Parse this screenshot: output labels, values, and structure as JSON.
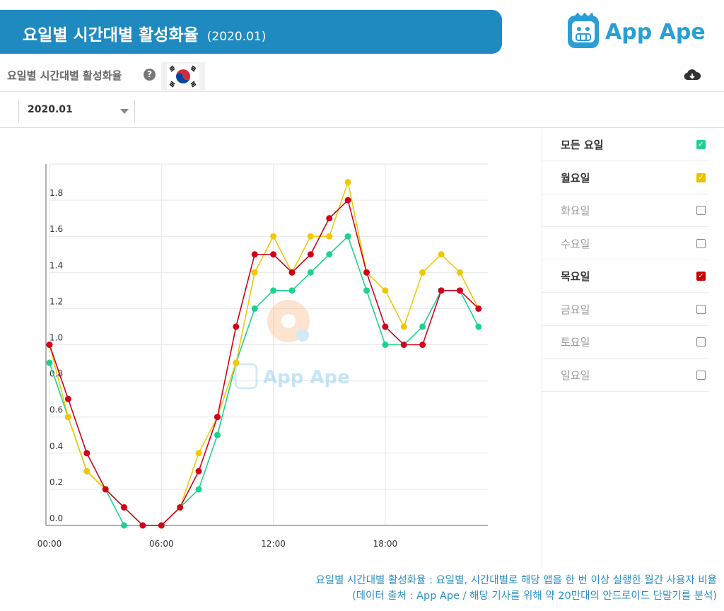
{
  "header": {
    "title": "요일별 시간대별 활성화율",
    "period_suffix": "(2020.01)",
    "logo_text": "App Ape",
    "colors": {
      "banner": "#1f8ac0",
      "logo": "#2a9fd6"
    }
  },
  "subheader": {
    "title": "요일별 시간대별 활성화율",
    "help_icon": "question-circle-icon",
    "flag_icon": "south-korea-flag-icon",
    "download_icon": "cloud-download-icon"
  },
  "toolbar": {
    "period_value": "2020.01"
  },
  "legend": {
    "items": [
      {
        "label": "모든 요일",
        "checked": true,
        "color": "#1fd18f"
      },
      {
        "label": "월요일",
        "checked": true,
        "color": "#e8c100"
      },
      {
        "label": "화요일",
        "checked": false,
        "color": "#888888"
      },
      {
        "label": "수요일",
        "checked": false,
        "color": "#888888"
      },
      {
        "label": "목요일",
        "checked": true,
        "color": "#cc0000"
      },
      {
        "label": "금요일",
        "checked": false,
        "color": "#888888"
      },
      {
        "label": "토요일",
        "checked": false,
        "color": "#888888"
      },
      {
        "label": "일요일",
        "checked": false,
        "color": "#888888"
      }
    ]
  },
  "chart_data": {
    "type": "line",
    "title": "",
    "xlabel": "",
    "ylabel": "",
    "x": [
      0,
      1,
      2,
      3,
      4,
      5,
      6,
      7,
      8,
      9,
      10,
      11,
      12,
      13,
      14,
      15,
      16,
      17,
      18,
      19,
      20,
      21,
      22,
      23
    ],
    "x_ticks": [
      0,
      6,
      12,
      18
    ],
    "x_tick_labels": [
      "00:00",
      "06:00",
      "12:00",
      "18:00"
    ],
    "y_ticks": [
      0.0,
      0.2,
      0.4,
      0.6,
      0.8,
      1.0,
      1.2,
      1.4,
      1.6,
      1.8
    ],
    "y_tick_labels": [
      "0.0",
      "0.2",
      "0.4",
      "0.6",
      "0.8",
      "1.0",
      "1.2",
      "1.4",
      "1.6",
      "1.8"
    ],
    "xlim": [
      0,
      23.5
    ],
    "ylim": [
      0,
      2.0
    ],
    "grid": true,
    "watermark": "App Ape",
    "series": [
      {
        "name": "모든 요일",
        "color": "#1fd18f",
        "values": [
          0.9,
          0.6,
          0.3,
          0.2,
          0.0,
          0.0,
          0.0,
          0.1,
          0.2,
          0.5,
          0.9,
          1.2,
          1.3,
          1.3,
          1.4,
          1.5,
          1.6,
          1.3,
          1.0,
          1.0,
          1.1,
          1.3,
          1.3,
          1.1
        ]
      },
      {
        "name": "월요일",
        "color": "#f0c808",
        "values": [
          1.0,
          0.6,
          0.3,
          0.2,
          0.1,
          0.0,
          0.0,
          0.1,
          0.4,
          0.6,
          0.9,
          1.4,
          1.6,
          1.4,
          1.6,
          1.6,
          1.9,
          1.4,
          1.3,
          1.1,
          1.4,
          1.5,
          1.4,
          1.2
        ]
      },
      {
        "name": "목요일",
        "color": "#d0021b",
        "values": [
          1.0,
          0.7,
          0.4,
          0.2,
          0.1,
          0.0,
          0.0,
          0.1,
          0.3,
          0.6,
          1.1,
          1.5,
          1.5,
          1.4,
          1.5,
          1.7,
          1.8,
          1.4,
          1.1,
          1.0,
          1.0,
          1.3,
          1.3,
          1.2
        ]
      }
    ]
  },
  "footer": {
    "line1": "요일별 시간대별 활성화율 : 요일별, 시간대별로 해당 앱을 한 번 이상 실행한 월간 사용자 비율",
    "line2": "(데이터 출처 : App Ape / 해당 기사를 위해 약 20만대의 안드로이드 단말기를 분석)"
  }
}
